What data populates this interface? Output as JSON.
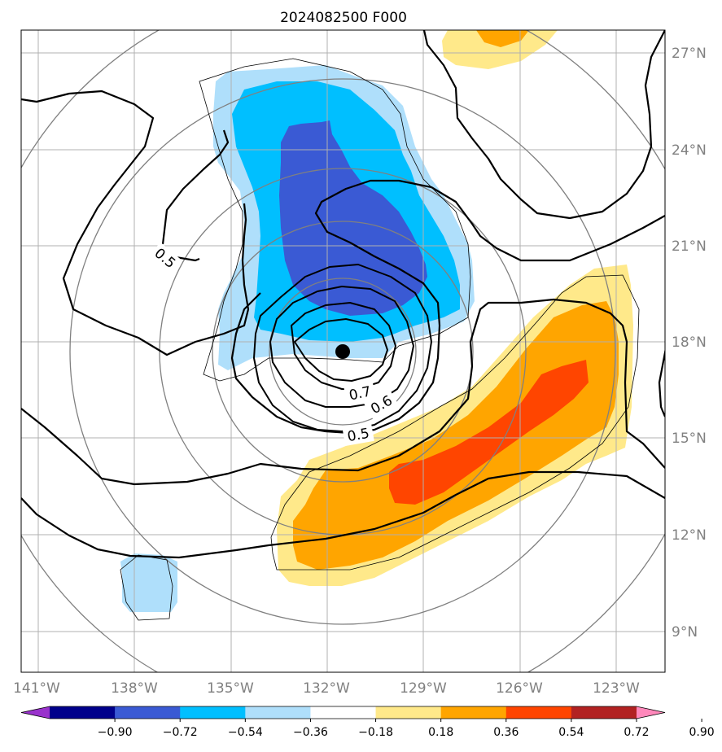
{
  "title": "2024082500 F000",
  "map": {
    "lat_labels": [
      "27°N",
      "24°N",
      "21°N",
      "18°N",
      "15°N",
      "12°N",
      "9°N"
    ],
    "lon_labels": [
      "141°W",
      "138°W",
      "135°W",
      "132°W",
      "129°W",
      "126°W",
      "123°W"
    ],
    "contour_labels": [
      "0.5",
      "0.7",
      "0.6",
      "0.5"
    ],
    "center_marker": "storm-center"
  },
  "colorbar": {
    "tick_labels": [
      "−0.90",
      "−0.72",
      "−0.54",
      "−0.36",
      "−0.18",
      "0.18",
      "0.36",
      "0.54",
      "0.72",
      "0.90"
    ],
    "colors": [
      "#9932cc",
      "#00008b",
      "#3a5ad4",
      "#00bfff",
      "#afdffb",
      "#ffffff",
      "#ffe98a",
      "#ffa500",
      "#ff4500",
      "#b22222",
      "#ff88bb"
    ]
  }
}
